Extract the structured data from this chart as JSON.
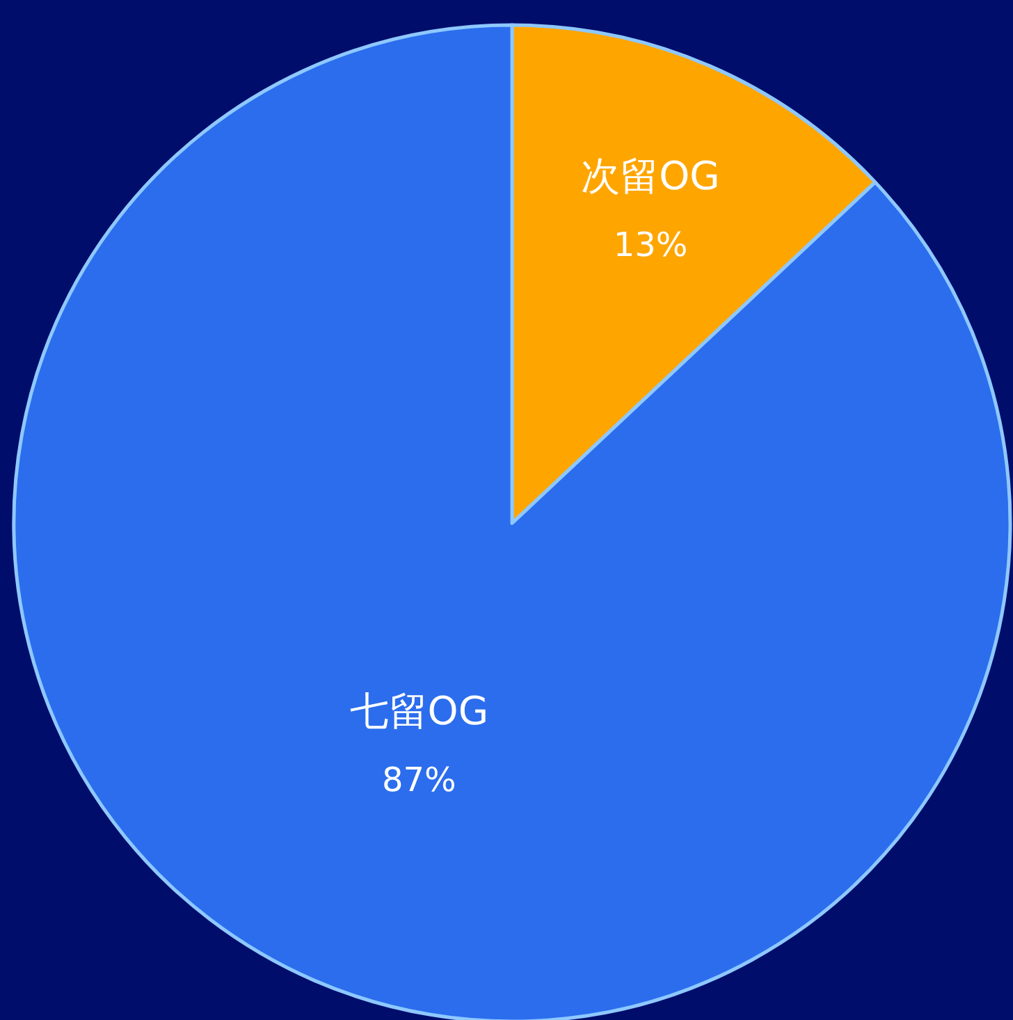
{
  "chart_data": {
    "type": "pie",
    "categories": [
      "次留OG",
      "七留OG"
    ],
    "values": [
      13,
      87
    ],
    "colors": [
      "#ffa500",
      "#2b6ded"
    ],
    "value_labels": [
      "13%",
      "87%"
    ]
  }
}
